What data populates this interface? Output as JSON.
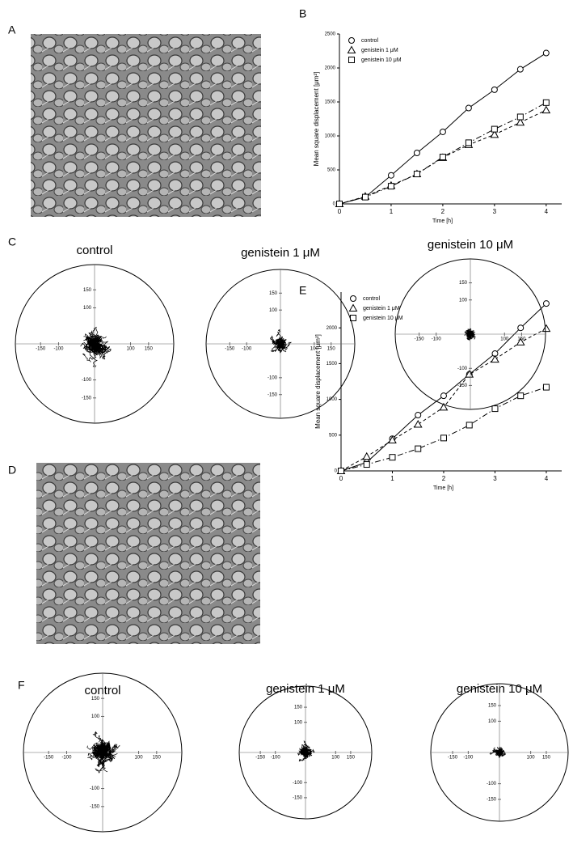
{
  "panel_labels": [
    "A",
    "B",
    "C",
    "D",
    "E",
    "F"
  ],
  "chart_data": [
    {
      "type": "line",
      "y_label": "Mean square displacement [μm²]",
      "x_label": "Time [h]",
      "x": [
        0,
        0.5,
        1,
        1.5,
        2,
        2.5,
        3,
        3.5,
        4
      ],
      "xlim": [
        0,
        4.3
      ],
      "xticks": [
        0,
        1,
        2,
        3,
        4
      ],
      "ylim": [
        0,
        2500
      ],
      "yticks": [
        0,
        500,
        1000,
        1500,
        2000,
        2500
      ],
      "legend": "upper left",
      "series": [
        {
          "name": "control",
          "color": "#000000",
          "marker": "circle",
          "line_style": "solid",
          "values": [
            0,
            100,
            420,
            750,
            1060,
            1410,
            1680,
            1980,
            2220
          ]
        },
        {
          "name": "genistein 1  μM",
          "color": "#000000",
          "marker": "triangle",
          "line_style": "dashed",
          "values": [
            0,
            110,
            270,
            440,
            680,
            870,
            1020,
            1200,
            1380
          ]
        },
        {
          "name": "genistein 10  μM",
          "color": "#000000",
          "marker": "square",
          "line_style": "dashdot",
          "values": [
            0,
            100,
            260,
            440,
            690,
            900,
            1100,
            1280,
            1490
          ]
        }
      ]
    },
    {
      "type": "line",
      "y_label": "Mean square displacement [μm²]",
      "x_label": "Time [h]",
      "x": [
        0,
        0.5,
        1,
        1.5,
        2,
        2.5,
        3,
        3.5,
        4
      ],
      "xlim": [
        0,
        4.3
      ],
      "xticks": [
        0,
        1,
        2,
        3,
        4
      ],
      "ylim": [
        0,
        2500
      ],
      "yticks": [
        0,
        500,
        1000,
        1500,
        2000
      ],
      "legend": "upper left",
      "series": [
        {
          "name": "control",
          "color": "#000000",
          "marker": "circle",
          "line_style": "solid",
          "values": [
            0,
            120,
            450,
            780,
            1050,
            1350,
            1640,
            2000,
            2340
          ]
        },
        {
          "name": "genistein 1  μM",
          "color": "#000000",
          "marker": "triangle",
          "line_style": "dashed",
          "values": [
            0,
            200,
            430,
            650,
            890,
            1350,
            1560,
            1800,
            1990
          ]
        },
        {
          "name": "genistein 10  μM",
          "color": "#000000",
          "marker": "square",
          "line_style": "dashdot",
          "values": [
            0,
            90,
            190,
            310,
            460,
            640,
            870,
            1050,
            1170
          ]
        }
      ]
    }
  ],
  "polar_ticks": [
    -150,
    -100,
    100,
    150
  ],
  "trajectory_plots": [
    {
      "title": "control"
    },
    {
      "title": "genistein 1 μM"
    },
    {
      "title": "genistein 10 μM"
    },
    {
      "title": "control"
    },
    {
      "title": "genistein 1 μM"
    },
    {
      "title": "genistein 10 μM"
    }
  ]
}
